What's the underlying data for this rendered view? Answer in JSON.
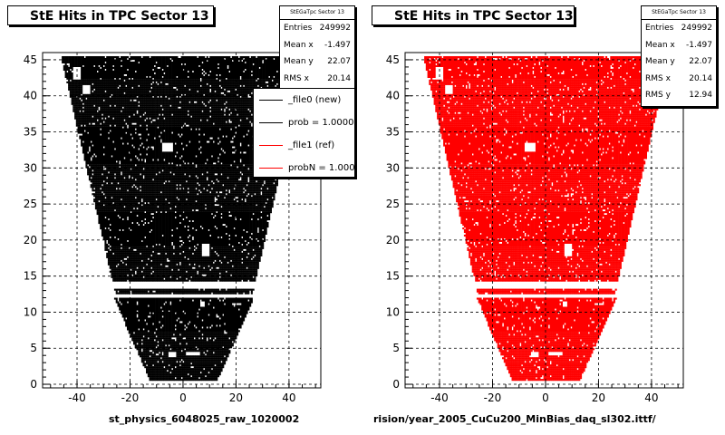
{
  "chart_data": [
    {
      "type": "scatter",
      "title": "StE Hits in TPC Sector 13",
      "color": "#000000",
      "xlim": [
        -53,
        52
      ],
      "ylim": [
        -0.5,
        46
      ],
      "xticks": [
        -40,
        -20,
        0,
        20,
        40
      ],
      "yticks": [
        0,
        5,
        10,
        15,
        20,
        25,
        30,
        35,
        40,
        45
      ],
      "grid": true,
      "stats": {
        "header": "StEGaTpc Sector 13",
        "rows": [
          {
            "label": "Entries",
            "value": "249992"
          },
          {
            "label": "Mean x",
            "value": "-1.497"
          },
          {
            "label": "Mean y",
            "value": "22.07"
          },
          {
            "label": "RMS x",
            "value": "20.14"
          }
        ]
      },
      "legend": [
        {
          "label": "_file0 (new)",
          "color": "#000000"
        },
        {
          "label": "prob = 1.000000",
          "color": "#000000"
        },
        {
          "label": "_file1 (ref)",
          "color": "#ff0000"
        },
        {
          "label": "probN = 1.000000",
          "color": "#ff0000"
        }
      ],
      "caption": "st_physics_6048025_raw_1020002"
    },
    {
      "type": "scatter",
      "title": "StE Hits in TPC Sector 13",
      "color": "#ff0000",
      "xlim": [
        -53,
        52
      ],
      "ylim": [
        -0.5,
        46
      ],
      "xticks": [
        -40,
        -20,
        0,
        20,
        40
      ],
      "yticks": [
        0,
        5,
        10,
        15,
        20,
        25,
        30,
        35,
        40,
        45
      ],
      "grid": true,
      "stats": {
        "header": "StEGaTpc Sector 13",
        "rows": [
          {
            "label": "Entries",
            "value": "249992"
          },
          {
            "label": "Mean x",
            "value": "-1.497"
          },
          {
            "label": "Mean y",
            "value": "22.07"
          },
          {
            "label": "RMS x",
            "value": "20.14"
          },
          {
            "label": "RMS y",
            "value": "12.94"
          }
        ]
      },
      "caption": "rision/year_2005_CuCu200_MinBias_daq_sl302.ittf/"
    }
  ]
}
